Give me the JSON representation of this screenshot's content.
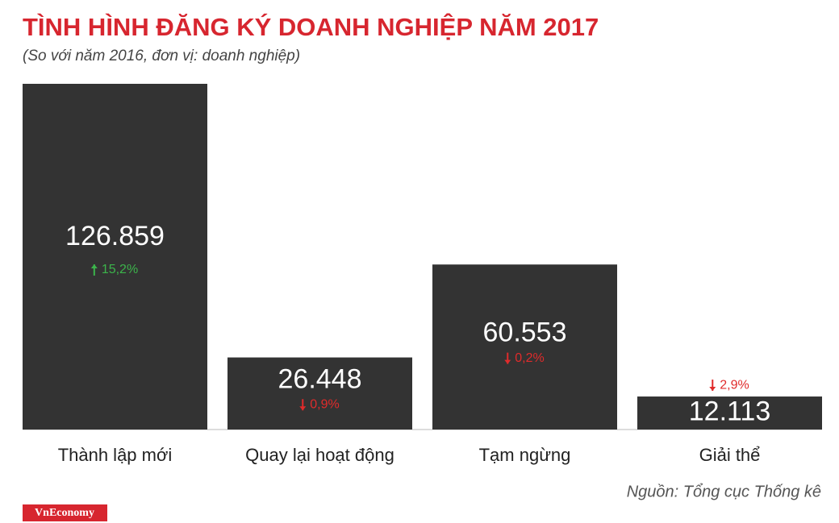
{
  "chart_data": {
    "type": "bar",
    "title": "TÌNH HÌNH ĐĂNG KÝ DOANH NGHIỆP NĂM 2017",
    "subtitle": "(So với năm 2016, đơn vị: doanh nghiệp)",
    "categories": [
      "Thành lập mới",
      "Quay lại hoạt động",
      "Tạm ngừng",
      "Giải thể"
    ],
    "values": [
      126859,
      26448,
      60553,
      12113
    ],
    "value_labels": [
      "126.859",
      "26.448",
      "60.553",
      "12.113"
    ],
    "changes": [
      "15,2%",
      "0,9%",
      "0,2%",
      "2,9%"
    ],
    "change_directions": [
      "up",
      "down",
      "down",
      "down"
    ],
    "color": "#333333",
    "up_color": "#3cb44b",
    "down_color": "#e02b2b",
    "source": "Nguồn: Tổng cục Thống kê",
    "brand": "VnEconomy"
  }
}
